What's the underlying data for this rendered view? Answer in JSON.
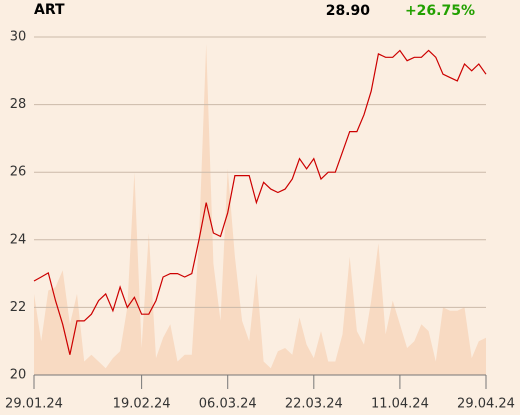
{
  "chart_data": {
    "type": "line",
    "title": "ART",
    "last": "28.90",
    "change": "+26.75%",
    "change_color": "#22a000",
    "categories": [
      "29.01.24",
      null,
      null,
      null,
      null,
      null,
      null,
      null,
      null,
      null,
      null,
      null,
      null,
      null,
      null,
      "19.02.24",
      null,
      null,
      null,
      null,
      null,
      null,
      null,
      null,
      null,
      null,
      null,
      "06.03.24",
      null,
      null,
      null,
      null,
      null,
      null,
      null,
      null,
      null,
      null,
      null,
      "22.03.24",
      null,
      null,
      null,
      null,
      null,
      null,
      null,
      null,
      null,
      null,
      null,
      "11.04.24",
      null,
      null,
      null,
      null,
      null,
      null,
      null,
      null,
      null,
      null,
      null,
      "29.04.24"
    ],
    "series": [
      {
        "type": "area",
        "color": "#f8dac2",
        "values": [
          22.4,
          21.0,
          22.5,
          22.6,
          23.1,
          21.5,
          22.4,
          20.4,
          20.6,
          20.4,
          20.2,
          20.5,
          20.7,
          22.0,
          26.0,
          20.8,
          24.2,
          20.5,
          21.1,
          21.5,
          20.4,
          20.6,
          20.6,
          24.0,
          29.8,
          23.3,
          21.6,
          26.1,
          23.5,
          21.6,
          21.0,
          23.0,
          20.4,
          20.2,
          20.7,
          20.8,
          20.6,
          21.7,
          20.9,
          20.5,
          21.3,
          20.4,
          20.4,
          21.2,
          23.5,
          21.3,
          20.9,
          22.2,
          23.9,
          21.2,
          22.2,
          21.5,
          20.8,
          21.0,
          21.5,
          21.3,
          20.4,
          22.0,
          21.9,
          21.9,
          22.0,
          20.5,
          21.0,
          21.1
        ]
      },
      {
        "type": "line",
        "color": "#cc0000",
        "values": [
          22.78,
          22.9,
          23.02,
          22.2,
          21.5,
          20.6,
          21.6,
          21.6,
          21.8,
          22.2,
          22.4,
          21.9,
          22.6,
          22.0,
          22.3,
          21.8,
          21.8,
          22.2,
          22.9,
          23.0,
          23.0,
          22.9,
          23.0,
          24.0,
          25.1,
          24.2,
          24.1,
          24.8,
          25.9,
          25.9,
          25.9,
          25.1,
          25.7,
          25.5,
          25.4,
          25.5,
          25.8,
          26.4,
          26.1,
          26.4,
          25.8,
          26.0,
          26.0,
          26.6,
          27.2,
          27.2,
          27.7,
          28.4,
          29.5,
          29.4,
          29.4,
          29.6,
          29.3,
          29.4,
          29.4,
          29.6,
          29.4,
          28.9,
          28.8,
          28.7,
          29.2,
          29.0,
          29.2,
          28.9
        ]
      }
    ],
    "ylim": [
      20,
      30
    ],
    "yticks": [
      20,
      22,
      24,
      26,
      28,
      30
    ],
    "grid": true
  }
}
